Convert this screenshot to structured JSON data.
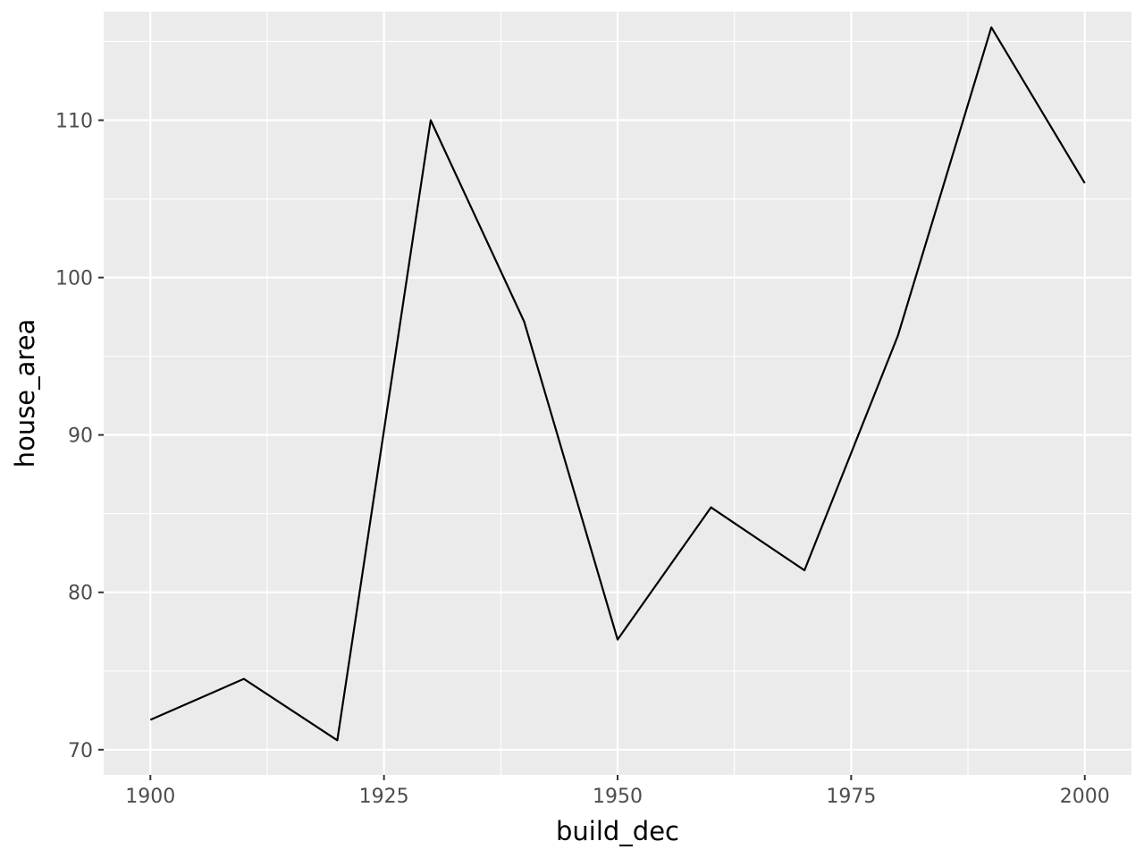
{
  "chart_data": {
    "type": "line",
    "title": "",
    "xlabel": "build_dec",
    "ylabel": "house_area",
    "x": [
      1900,
      1910,
      1920,
      1930,
      1940,
      1950,
      1960,
      1970,
      1980,
      1990,
      2000
    ],
    "series": [
      {
        "values": [
          71.9,
          74.5,
          70.6,
          110.0,
          97.2,
          77.0,
          85.4,
          81.4,
          96.3,
          115.9,
          106.0
        ]
      }
    ],
    "xlim": [
      1895,
      2005
    ],
    "ylim": [
      68.4,
      116.9
    ],
    "x_ticks": [
      1900,
      1925,
      1950,
      1975,
      2000
    ],
    "x_tick_labels": [
      "1900",
      "1925",
      "1950",
      "1975",
      "2000"
    ],
    "x_minor_ticks": [
      1912.5,
      1937.5,
      1962.5,
      1987.5
    ],
    "y_ticks": [
      70,
      80,
      90,
      100,
      110
    ],
    "y_tick_labels": [
      "70",
      "80",
      "90",
      "100",
      "110"
    ],
    "y_minor_ticks": [
      75,
      85,
      95,
      105,
      115
    ],
    "grid": true,
    "legend": "none",
    "colors": {
      "panel_background": "#ebebeb",
      "grid_major": "#ffffff",
      "grid_minor": "#ffffff",
      "line": "#000000",
      "tick_text": "#4d4d4d",
      "axis_title": "#000000",
      "tick_mark": "#333333"
    }
  }
}
